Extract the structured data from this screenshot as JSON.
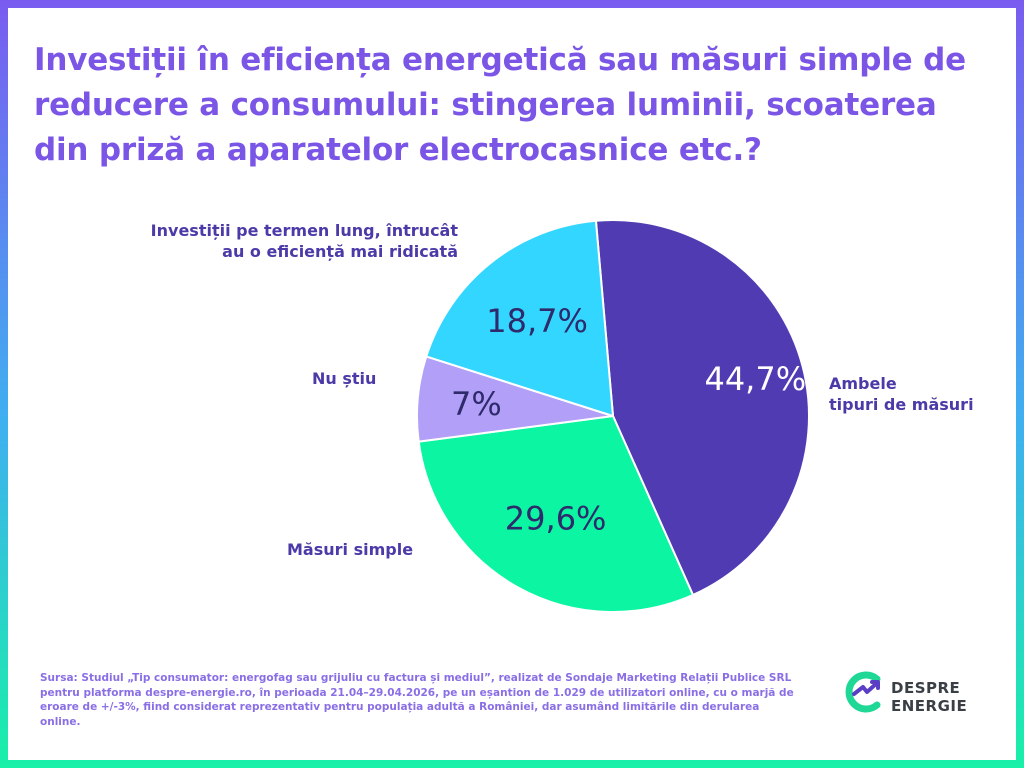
{
  "title": "Investiții în eficiența energetică sau măsuri simple de reducere a consumului: stingerea luminii, scoaterea din priză a aparatelor electrocasnice etc.?",
  "chart_data": {
    "type": "pie",
    "title": "Investiții în eficiența energetică sau măsuri simple de reducere a consumului: stingerea luminii, scoaterea din priză a aparatelor electrocasnice etc.?",
    "slices": [
      {
        "label": "Ambele tipuri de măsuri",
        "label_lines": [
          "Ambele",
          "tipuri de măsuri"
        ],
        "value": 44.7,
        "value_label": "44,7%",
        "color": "#513bb3",
        "text_color": "#ffffff"
      },
      {
        "label": "Măsuri simple",
        "label_lines": [
          "Măsuri simple"
        ],
        "value": 29.6,
        "value_label": "29,6%",
        "color": "#0cf5a2",
        "text_color": "#2e2a6b"
      },
      {
        "label": "Nu știu",
        "label_lines": [
          "Nu știu"
        ],
        "value": 7,
        "value_label": "7%",
        "color": "#b29ff7",
        "text_color": "#2e2a6b"
      },
      {
        "label": "Investiții pe termen lung, întrucât au o eficiență mai ridicată",
        "label_lines": [
          "Investiții pe termen lung, întrucât",
          "au o eficiență mai ridicată"
        ],
        "value": 18.7,
        "value_label": "18,7%",
        "color": "#33d6fe",
        "text_color": "#2e2a6b"
      }
    ],
    "legend": "none"
  },
  "source": "Sursa: Studiul „Tip consumator: energofag sau grijuliu cu factura și mediul”, realizat de Sondaje Marketing Relații Publice SRL pentru platforma despre-energie.ro, în perioada 21.04–29.04.2026, pe un eșantion de 1.029 de utilizatori online, cu o marjă de eroare de +/-3%, fiind considerat reprezentativ pentru populația adultă a României, dar asumând limitările din derularea online.",
  "logo": {
    "line1": "DESPRE",
    "line2": "ENERGIE"
  },
  "colors": {
    "title": "#7a55e6",
    "labels": "#4b3aa8",
    "source": "#8a6ee6"
  }
}
